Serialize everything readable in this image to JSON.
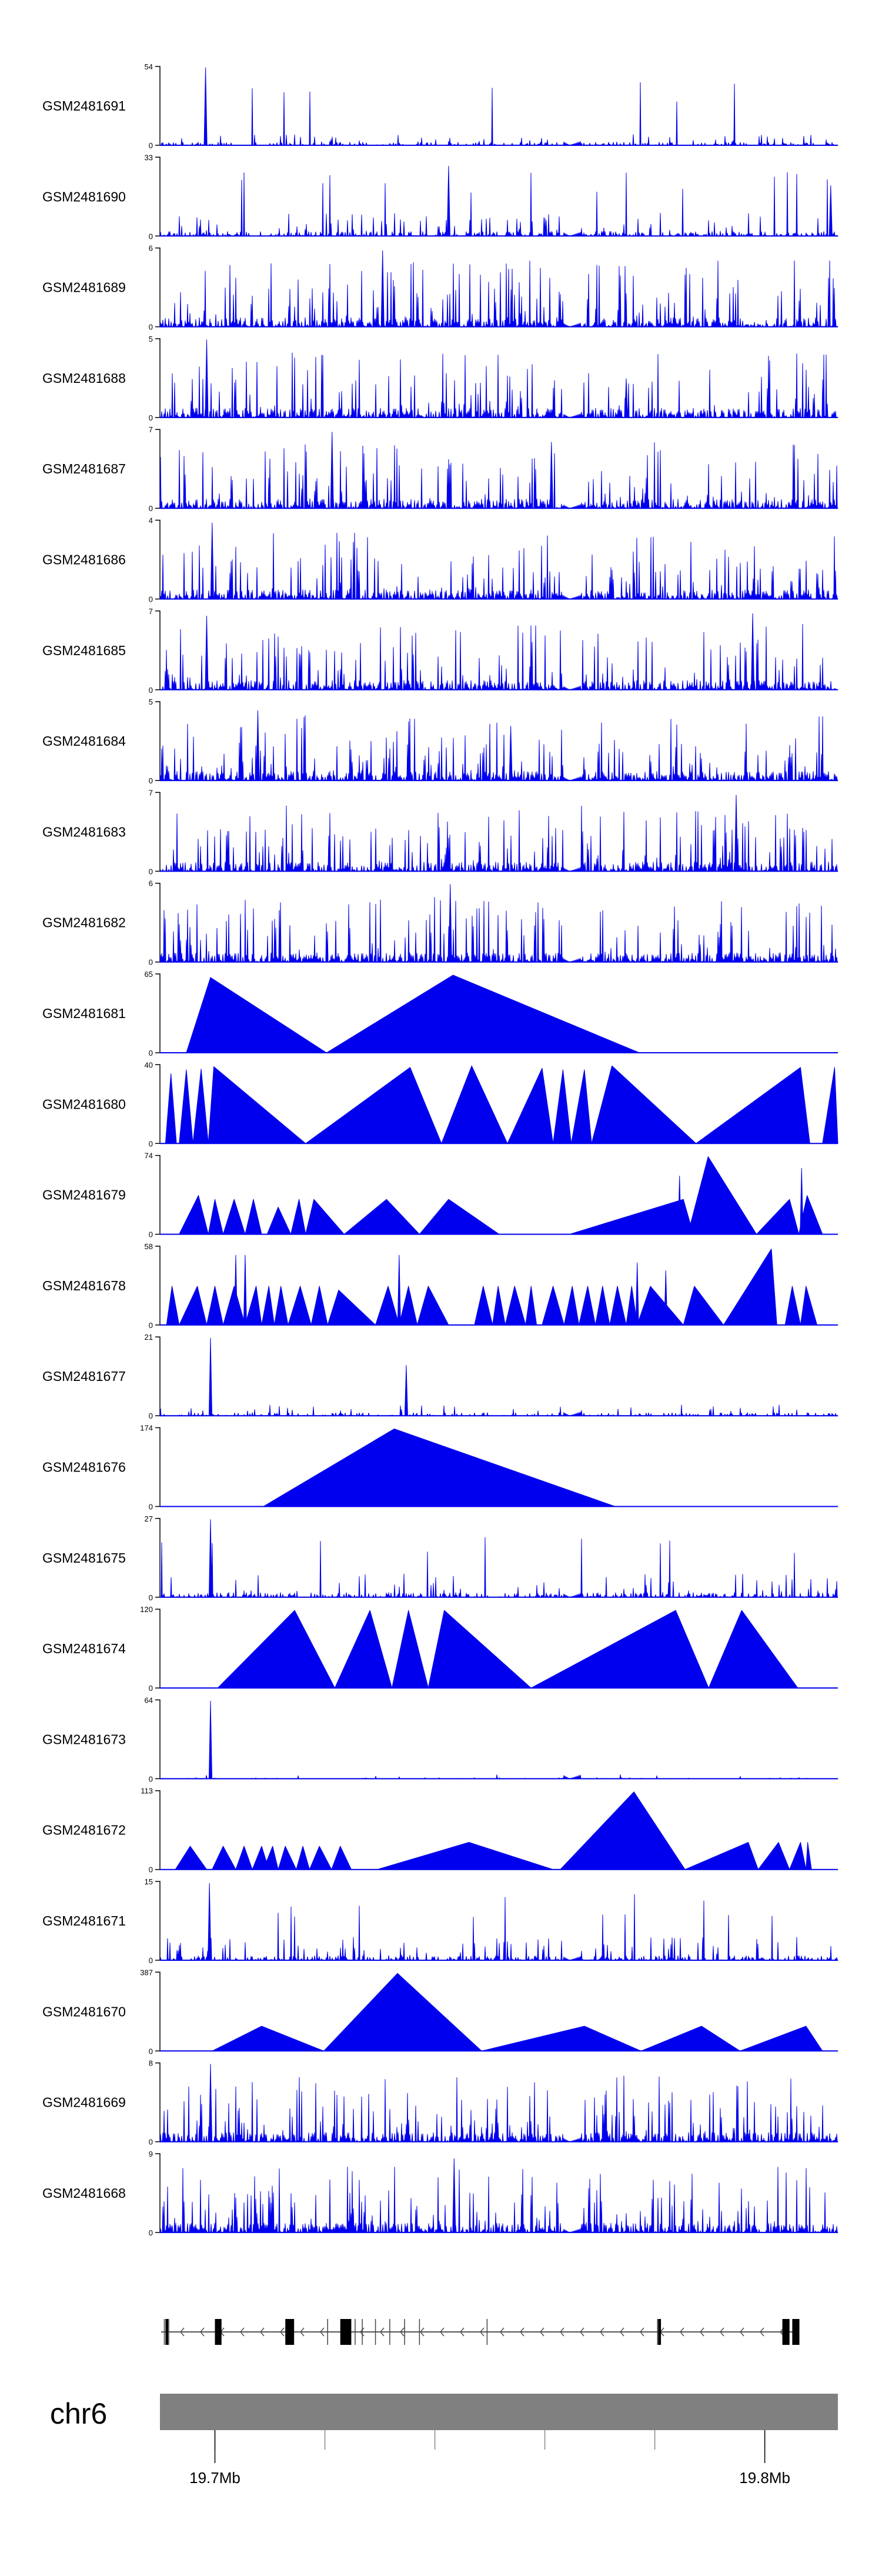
{
  "chart_data": {
    "type": "area",
    "title": "",
    "chromosome": "chr6",
    "x_label_ticks": [
      {
        "value": 19.7,
        "label": "19.7Mb"
      },
      {
        "value": 19.8,
        "label": "19.8Mb"
      }
    ],
    "x_range_mb": [
      19.69,
      19.8133
    ],
    "tracks": [
      {
        "name": "GSM2481691",
        "ymax": 54,
        "ymin": 0,
        "style": "noisy",
        "density": "sparse",
        "spikes": [
          [
            19.6983,
            1.0
          ]
        ]
      },
      {
        "name": "GSM2481690",
        "ymax": 33,
        "ymin": 0,
        "style": "noisy",
        "density": "medium",
        "spikes": [
          [
            19.7425,
            0.9
          ],
          [
            19.812,
            0.65
          ]
        ]
      },
      {
        "name": "GSM2481689",
        "ymax": 6,
        "ymin": 0,
        "style": "noisy",
        "density": "dense",
        "spikes": [
          [
            19.7305,
            0.98
          ]
        ]
      },
      {
        "name": "GSM2481688",
        "ymax": 5,
        "ymin": 0,
        "style": "noisy",
        "density": "dense",
        "spikes": [
          [
            19.6985,
            1.0
          ],
          [
            19.7748,
            0.5
          ]
        ]
      },
      {
        "name": "GSM2481687",
        "ymax": 7,
        "ymin": 0,
        "style": "noisy",
        "density": "dense",
        "spikes": [
          [
            19.7213,
            0.98
          ],
          [
            19.7612,
            0.85
          ]
        ]
      },
      {
        "name": "GSM2481686",
        "ymax": 4,
        "ymin": 0,
        "style": "noisy",
        "density": "dense",
        "spikes": [
          [
            19.6995,
            0.98
          ]
        ]
      },
      {
        "name": "GSM2481685",
        "ymax": 7,
        "ymin": 0,
        "style": "noisy",
        "density": "dense",
        "spikes": [
          [
            19.6985,
            0.95
          ],
          [
            19.7978,
            0.98
          ]
        ]
      },
      {
        "name": "GSM2481684",
        "ymax": 5,
        "ymin": 0,
        "style": "noisy",
        "density": "dense",
        "spikes": [
          [
            19.7078,
            0.9
          ],
          [
            19.7538,
            0.7
          ]
        ]
      },
      {
        "name": "GSM2481683",
        "ymax": 7,
        "ymin": 0,
        "style": "noisy",
        "density": "dense",
        "spikes": [
          [
            19.7948,
            0.98
          ]
        ]
      },
      {
        "name": "GSM2481682",
        "ymax": 6,
        "ymin": 0,
        "style": "noisy",
        "density": "dense",
        "spikes": [
          [
            19.7428,
            1.0
          ]
        ]
      },
      {
        "name": "GSM2481681",
        "ymax": 65,
        "ymin": 0,
        "style": "triangles",
        "triangles": [
          [
            19.6948,
            19.6992,
            19.7203,
            0.97
          ],
          [
            19.7203,
            19.7433,
            19.7772,
            1.0
          ]
        ],
        "spikes": [
          [
            19.7433,
            1.0
          ]
        ]
      },
      {
        "name": "GSM2481680",
        "ymax": 40,
        "ymin": 0,
        "style": "triangles",
        "triangles": [
          [
            19.691,
            19.692,
            19.693,
            0.9
          ],
          [
            19.6935,
            19.6948,
            19.696,
            0.95
          ],
          [
            19.696,
            19.6975,
            19.6988,
            0.96
          ],
          [
            19.6988,
            19.6998,
            19.7165,
            0.99
          ],
          [
            19.7165,
            19.7355,
            19.7412,
            0.98
          ],
          [
            19.7412,
            19.7467,
            19.7532,
            1.0
          ],
          [
            19.7532,
            19.7595,
            19.7615,
            0.97
          ],
          [
            19.7615,
            19.7633,
            19.7648,
            0.95
          ],
          [
            19.7648,
            19.7672,
            19.7685,
            0.95
          ],
          [
            19.7685,
            19.7722,
            19.7875,
            1.0
          ],
          [
            19.7875,
            19.8065,
            19.8082,
            0.98
          ],
          [
            19.8105,
            19.8127,
            19.8133,
            0.98
          ]
        ]
      },
      {
        "name": "GSM2481679",
        "ymax": 74,
        "ymin": 0,
        "style": "triangles",
        "triangles": [
          [
            19.6935,
            19.697,
            19.6988,
            0.5
          ],
          [
            19.6988,
            19.7,
            19.7015,
            0.45
          ],
          [
            19.7015,
            19.7035,
            19.7055,
            0.45
          ],
          [
            19.7055,
            19.707,
            19.7085,
            0.45
          ],
          [
            19.7095,
            19.7115,
            19.7138,
            0.35
          ],
          [
            19.7138,
            19.7153,
            19.7165,
            0.45
          ],
          [
            19.7165,
            19.718,
            19.7235,
            0.45
          ],
          [
            19.7235,
            19.7312,
            19.7372,
            0.45
          ],
          [
            19.7372,
            19.7425,
            19.7517,
            0.45
          ],
          [
            19.7645,
            19.7852,
            19.787,
            0.45
          ],
          [
            19.786,
            19.7897,
            19.7985,
            1.0
          ],
          [
            19.7985,
            19.8045,
            19.8062,
            0.45
          ],
          [
            19.8062,
            19.8077,
            19.8105,
            0.5
          ]
        ],
        "spikes": [
          [
            19.7845,
            0.75
          ],
          [
            19.8067,
            0.85
          ]
        ]
      },
      {
        "name": "GSM2481678",
        "ymax": 58,
        "ymin": 0,
        "style": "triangles",
        "triangles": [
          [
            19.6912,
            19.6922,
            19.6935,
            0.5
          ],
          [
            19.6935,
            19.6968,
            19.6985,
            0.5
          ],
          [
            19.6985,
            19.7,
            19.7015,
            0.5
          ],
          [
            19.7015,
            19.7035,
            19.7055,
            0.5
          ],
          [
            19.7055,
            19.7075,
            19.7085,
            0.5
          ],
          [
            19.7085,
            19.7098,
            19.7108,
            0.5
          ],
          [
            19.7108,
            19.712,
            19.7133,
            0.5
          ],
          [
            19.7133,
            19.7155,
            19.7175,
            0.5
          ],
          [
            19.7175,
            19.719,
            19.7205,
            0.5
          ],
          [
            19.7205,
            19.7225,
            19.7292,
            0.45
          ],
          [
            19.7292,
            19.7315,
            19.7335,
            0.5
          ],
          [
            19.7335,
            19.7352,
            19.7368,
            0.5
          ],
          [
            19.7368,
            19.7388,
            19.7425,
            0.5
          ],
          [
            19.7472,
            19.7488,
            19.7505,
            0.5
          ],
          [
            19.7505,
            19.7515,
            19.7528,
            0.5
          ],
          [
            19.7528,
            19.7545,
            19.7565,
            0.5
          ],
          [
            19.7565,
            19.7575,
            19.7585,
            0.5
          ],
          [
            19.7595,
            19.7615,
            19.7635,
            0.5
          ],
          [
            19.7635,
            19.765,
            19.7662,
            0.5
          ],
          [
            19.7662,
            19.7678,
            19.7692,
            0.5
          ],
          [
            19.7692,
            19.7705,
            19.7718,
            0.5
          ],
          [
            19.7718,
            19.7732,
            19.7748,
            0.5
          ],
          [
            19.7748,
            19.7758,
            19.7768,
            0.5
          ],
          [
            19.7768,
            19.7792,
            19.7852,
            0.5
          ],
          [
            19.7852,
            19.7872,
            19.7925,
            0.5
          ],
          [
            19.7925,
            19.8012,
            19.8022,
            0.98
          ],
          [
            19.8037,
            19.805,
            19.8065,
            0.5
          ],
          [
            19.8065,
            19.8075,
            19.8095,
            0.5
          ]
        ],
        "spikes": [
          [
            19.7038,
            0.9
          ],
          [
            19.7055,
            0.9
          ],
          [
            19.7335,
            0.9
          ],
          [
            19.7768,
            0.8
          ],
          [
            19.782,
            0.7
          ]
        ]
      },
      {
        "name": "GSM2481677",
        "ymax": 21,
        "ymin": 0,
        "style": "noisy",
        "density": "sparse",
        "spikes": [
          [
            19.6992,
            1.0
          ],
          [
            19.7348,
            0.65
          ]
        ]
      },
      {
        "name": "GSM2481676",
        "ymax": 174,
        "ymin": 0,
        "style": "triangles",
        "triangles": [
          [
            19.7088,
            19.7326,
            19.7728,
            1.0
          ]
        ]
      },
      {
        "name": "GSM2481675",
        "ymax": 27,
        "ymin": 0,
        "style": "noisy",
        "density": "medium",
        "spikes": [
          [
            19.6992,
            1.0
          ]
        ]
      },
      {
        "name": "GSM2481674",
        "ymax": 120,
        "ymin": 0,
        "style": "triangles",
        "triangles": [
          [
            19.7005,
            19.7145,
            19.7218,
            1.0
          ],
          [
            19.7218,
            19.7282,
            19.7322,
            1.0
          ],
          [
            19.7322,
            19.7352,
            19.7388,
            1.0
          ],
          [
            19.7388,
            19.7417,
            19.7575,
            1.0
          ],
          [
            19.7575,
            19.7838,
            19.7898,
            1.0
          ],
          [
            19.7898,
            19.7958,
            19.806,
            1.0
          ]
        ],
        "spikes": [
          [
            19.7838,
            1.0
          ]
        ]
      },
      {
        "name": "GSM2481673",
        "ymax": 64,
        "ymin": 0,
        "style": "noisy",
        "density": "very-sparse",
        "spikes": [
          [
            19.6992,
            1.0
          ]
        ]
      },
      {
        "name": "GSM2481672",
        "ymax": 113,
        "ymin": 0,
        "style": "triangles",
        "triangles": [
          [
            19.6928,
            19.6955,
            19.6985,
            0.3
          ],
          [
            19.6995,
            19.7015,
            19.7038,
            0.3
          ],
          [
            19.7038,
            19.7053,
            19.7068,
            0.3
          ],
          [
            19.7068,
            19.7085,
            19.7098,
            0.3
          ],
          [
            19.7088,
            19.7105,
            19.7115,
            0.3
          ],
          [
            19.7115,
            19.7128,
            19.7148,
            0.3
          ],
          [
            19.7148,
            19.716,
            19.7172,
            0.3
          ],
          [
            19.7172,
            19.719,
            19.7212,
            0.3
          ],
          [
            19.7212,
            19.7228,
            19.7248,
            0.3
          ],
          [
            19.7295,
            19.7462,
            19.7615,
            0.35
          ],
          [
            19.7628,
            19.7762,
            19.7855,
            1.0
          ],
          [
            19.7855,
            19.797,
            19.7988,
            0.35
          ],
          [
            19.7988,
            19.8025,
            19.8045,
            0.35
          ],
          [
            19.8045,
            19.8065,
            19.8075,
            0.35
          ],
          [
            19.8075,
            19.8078,
            19.8085,
            0.35
          ]
        ]
      },
      {
        "name": "GSM2481671",
        "ymax": 15,
        "ymin": 0,
        "style": "noisy",
        "density": "medium",
        "spikes": [
          [
            19.699,
            0.99
          ]
        ]
      },
      {
        "name": "GSM2481670",
        "ymax": 387,
        "ymin": 0,
        "style": "triangles",
        "triangles": [
          [
            19.6995,
            19.7085,
            19.7198,
            0.32
          ],
          [
            19.7198,
            19.7332,
            19.7485,
            1.0
          ],
          [
            19.7485,
            19.7672,
            19.7775,
            0.32
          ],
          [
            19.7775,
            19.7885,
            19.7955,
            0.32
          ],
          [
            19.7955,
            19.8075,
            19.8105,
            0.32
          ]
        ]
      },
      {
        "name": "GSM2481669",
        "ymax": 8,
        "ymin": 0,
        "style": "noisy",
        "density": "dense",
        "spikes": [
          [
            19.6992,
            1.0
          ]
        ]
      },
      {
        "name": "GSM2481668",
        "ymax": 9,
        "ymin": 0,
        "style": "noisy",
        "density": "dense",
        "spikes": [
          [
            19.7435,
            0.95
          ]
        ]
      }
    ],
    "gene_track": {
      "strand": "-",
      "exons_mb": [
        [
          19.691,
          19.6915
        ],
        [
          19.7,
          19.7012
        ],
        [
          19.7128,
          19.7144
        ],
        [
          19.7228,
          19.7248
        ],
        [
          19.7806,
          19.7808
        ],
        [
          19.7808,
          19.781
        ],
        [
          19.8032,
          19.8045
        ],
        [
          19.805,
          19.8063
        ]
      ]
    },
    "ideogram": {
      "color": "#808080"
    }
  }
}
